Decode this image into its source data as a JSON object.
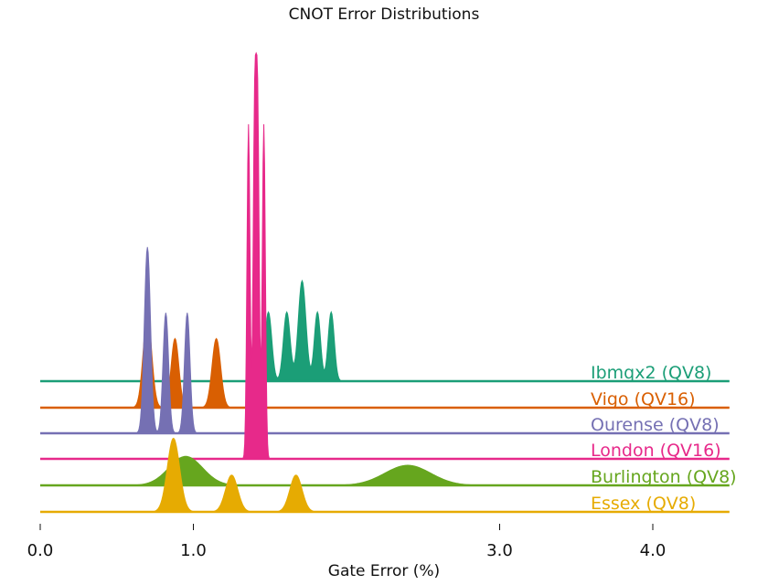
{
  "chart_data": {
    "type": "area",
    "title": "CNOT Error Distributions",
    "xlabel": "Gate Error (%)",
    "ylabel": "",
    "xlim": [
      0.0,
      4.5
    ],
    "xticks": [
      0.0,
      1.0,
      3.0,
      4.0
    ],
    "xtick_labels": [
      "0.0",
      "1.0",
      "3.0",
      "4.0"
    ],
    "grid": false,
    "legend": "none",
    "series": [
      {
        "name": "Ibmqx2 (QV8)",
        "color": "#1b9e77",
        "peaks": [
          {
            "x": 1.49,
            "height": 0.062,
            "width": 0.022
          },
          {
            "x": 1.61,
            "height": 0.062,
            "width": 0.022
          },
          {
            "x": 1.71,
            "height": 0.09,
            "width": 0.025
          },
          {
            "x": 1.81,
            "height": 0.062,
            "width": 0.02
          },
          {
            "x": 1.9,
            "height": 0.062,
            "width": 0.02
          }
        ]
      },
      {
        "name": "Vigo (QV16)",
        "color": "#d95f02",
        "peaks": [
          {
            "x": 0.7,
            "height": 0.082,
            "width": 0.028
          },
          {
            "x": 0.88,
            "height": 0.062,
            "width": 0.025
          },
          {
            "x": 1.15,
            "height": 0.062,
            "width": 0.028
          }
        ]
      },
      {
        "name": "Ourense (QV8)",
        "color": "#7570b3",
        "peaks": [
          {
            "x": 0.7,
            "height": 0.167,
            "width": 0.02
          },
          {
            "x": 0.82,
            "height": 0.108,
            "width": 0.018
          },
          {
            "x": 0.96,
            "height": 0.108,
            "width": 0.018
          }
        ]
      },
      {
        "name": "London (QV16)",
        "color": "#e7298a",
        "peaks": [
          {
            "x": 1.36,
            "height": 0.3,
            "width": 0.01
          },
          {
            "x": 1.4,
            "height": 0.3,
            "width": 0.01
          },
          {
            "x": 1.42,
            "height": 0.3,
            "width": 0.01
          },
          {
            "x": 1.46,
            "height": 0.3,
            "width": 0.01
          }
        ]
      },
      {
        "name": "Burlington (QV8)",
        "color": "#66a61e",
        "peaks": [
          {
            "x": 0.95,
            "height": 0.026,
            "width": 0.11
          },
          {
            "x": 2.4,
            "height": 0.018,
            "width": 0.15
          }
        ]
      },
      {
        "name": "Essex (QV8)",
        "color": "#e6ab02",
        "peaks": [
          {
            "x": 0.87,
            "height": 0.066,
            "width": 0.04
          },
          {
            "x": 1.25,
            "height": 0.033,
            "width": 0.04
          },
          {
            "x": 1.67,
            "height": 0.033,
            "width": 0.04
          }
        ]
      }
    ]
  }
}
